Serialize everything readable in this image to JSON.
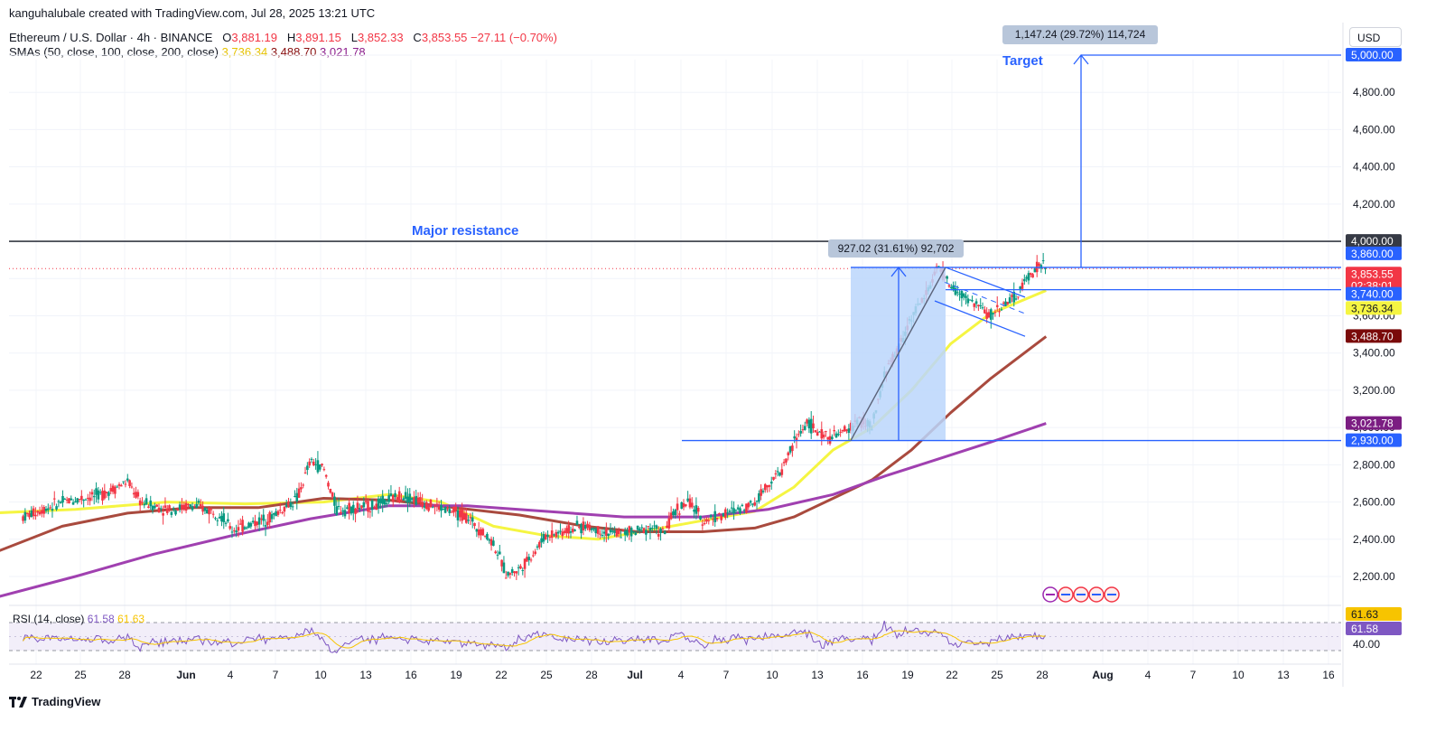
{
  "header": {
    "attribution": "kanguhalubale created with TradingView.com, Jul 28, 2025 13:21 UTC",
    "symbol": "Ethereum / U.S. Dollar · 4h · BINANCE",
    "ohlc": {
      "o_label": "O",
      "o": "3,881.19",
      "h_label": "H",
      "h": "3,891.15",
      "l_label": "L",
      "l": "3,852.33",
      "c_label": "C",
      "c": "3,853.55",
      "change": "−27.11 (−0.70%)"
    },
    "sma_label": "SMAs (50, close, 100, close, 200, close)",
    "sma50": "3,736.34",
    "sma100": "3,488.70",
    "sma200": "3,021.78"
  },
  "currency": "USD",
  "rsi_label": "RSI (14, close)",
  "rsi_value": "61.58",
  "rsi_ma_value": "61.63",
  "footer_logo": "TradingView",
  "colors": {
    "sma50": "#f5f542",
    "sma100": "#a94a3e",
    "sma200": "#a040b0",
    "bull": "#089981",
    "bear": "#f23645",
    "blue": "#2962ff",
    "rsi": "#7e57c2",
    "rsi_ma": "#f7c400"
  },
  "chart_data": {
    "type": "candlestick",
    "y_axis": {
      "ticks": [
        "2,200.00",
        "2,400.00",
        "2,600.00",
        "2,800.00",
        "3,000.00",
        "3,200.00",
        "3,400.00",
        "3,600.00",
        "3,800.00",
        "4,000.00",
        "4,200.00",
        "4,400.00",
        "4,600.00",
        "4,800.00",
        "5,000.00"
      ],
      "range": [
        2100,
        5050
      ]
    },
    "x_axis": {
      "labels": [
        "22",
        "25",
        "28",
        "Jun",
        "4",
        "7",
        "10",
        "13",
        "16",
        "19",
        "22",
        "25",
        "28",
        "Jul",
        "4",
        "7",
        "10",
        "13",
        "16",
        "19",
        "22",
        "25",
        "28",
        "Aug",
        "4",
        "7",
        "10",
        "13",
        "16"
      ],
      "bold_labels": [
        "Jun",
        "Jul",
        "Aug"
      ]
    },
    "price_labels": [
      {
        "value": 5000,
        "text": "5,000.00",
        "style": "blue"
      },
      {
        "value": 4000,
        "text": "4,000.00",
        "style": "dark"
      },
      {
        "value": 3860,
        "text": "3,860.00",
        "style": "blue"
      },
      {
        "value": 3853.55,
        "text": "3,853.55",
        "countdown": "02:38:01",
        "style": "red"
      },
      {
        "value": 3740,
        "text": "3,740.00",
        "style": "blue"
      },
      {
        "value": 3736.34,
        "text": "3,736.34",
        "style": "yellow"
      },
      {
        "value": 3488.7,
        "text": "3,488.70",
        "style": "maroon"
      },
      {
        "value": 3021.78,
        "text": "3,021.78",
        "style": "purple"
      },
      {
        "value": 2930,
        "text": "2,930.00",
        "style": "blue"
      }
    ],
    "levels": {
      "major_resistance": 4000,
      "target": 5000,
      "flag_top": 3860,
      "flag_mid": 3740,
      "pole_base": 2930
    },
    "annotations": {
      "major_resistance": "Major resistance",
      "target": "Target",
      "pole_measure": "927.02 (31.61%) 92,702",
      "target_measure": "1,147.24 (29.72%) 114,724"
    },
    "series": [
      {
        "name": "SMA 50",
        "value_last": 3736.34
      },
      {
        "name": "SMA 100",
        "value_last": 3488.7
      },
      {
        "name": "SMA 200",
        "value_last": 3021.78
      }
    ],
    "rsi": {
      "ticks": [
        "61.63",
        "61.58",
        "40.00"
      ],
      "value": 61.58,
      "ma": 61.63,
      "upper_band": 70,
      "lower_band": 30
    }
  }
}
